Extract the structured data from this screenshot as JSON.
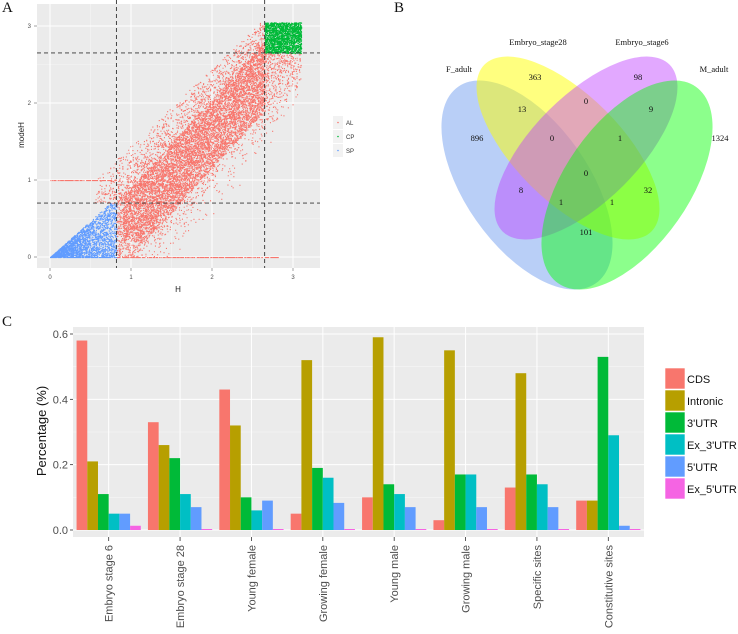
{
  "panels": {
    "a_label": "A",
    "b_label": "B",
    "c_label": "C"
  },
  "chart_data": [
    {
      "panel": "A",
      "type": "scatter",
      "title": "",
      "xlabel": "H",
      "ylabel": "modeH",
      "xlim": [
        -0.15,
        3.3
      ],
      "ylim": [
        -0.15,
        3.2
      ],
      "xticks": [
        "0",
        "1",
        "2",
        "3"
      ],
      "yticks": [
        "0",
        "1",
        "2",
        "3"
      ],
      "grid": true,
      "legend": {
        "placement": "right",
        "entries": [
          {
            "name": "AL",
            "color": "#F8766D"
          },
          {
            "name": "CP",
            "color": "#00BA38"
          },
          {
            "name": "SP",
            "color": "#619CFF"
          }
        ]
      },
      "threshold_lines": {
        "vertical_H": [
          0.82,
          2.65
        ],
        "horizontal_modeH": [
          0.7,
          2.65
        ],
        "style": "dashed"
      },
      "regions": [
        {
          "series": "SP",
          "description": "low H and low modeH",
          "H_range": [
            0,
            0.82
          ],
          "modeH_range": [
            0,
            0.7
          ]
        },
        {
          "series": "CP",
          "description": "high H and high modeH",
          "H_range": [
            2.65,
            3.1
          ],
          "modeH_range": [
            2.65,
            3.05
          ]
        },
        {
          "series": "AL",
          "description": "all other points, diagonal band",
          "H_range": [
            0.55,
            3.1
          ],
          "modeH_range": [
            0,
            3.05
          ]
        }
      ]
    },
    {
      "panel": "B",
      "type": "venn",
      "sets": [
        "F_adult",
        "Embryo_stage28",
        "Embryo_stage6",
        "M_adult"
      ],
      "set_colors": {
        "F_adult": "#6495ED",
        "Embryo_stage28": "#FFFF00",
        "Embryo_stage6": "#BF3EFF",
        "M_adult": "#00FF00"
      },
      "regions": [
        {
          "sets": [
            "F_adult"
          ],
          "value": 896
        },
        {
          "sets": [
            "Embryo_stage28"
          ],
          "value": 363
        },
        {
          "sets": [
            "Embryo_stage6"
          ],
          "value": 98
        },
        {
          "sets": [
            "M_adult"
          ],
          "value": 1324
        },
        {
          "sets": [
            "F_adult",
            "Embryo_stage28"
          ],
          "value": 13
        },
        {
          "sets": [
            "Embryo_stage28",
            "Embryo_stage6"
          ],
          "value": 0
        },
        {
          "sets": [
            "Embryo_stage6",
            "M_adult"
          ],
          "value": 9
        },
        {
          "sets": [
            "F_adult",
            "Embryo_stage28",
            "Embryo_stage6"
          ],
          "value": 0
        },
        {
          "sets": [
            "Embryo_stage28",
            "Embryo_stage6",
            "M_adult"
          ],
          "value": 1
        },
        {
          "sets": [
            "F_adult",
            "Embryo_stage28",
            "Embryo_stage6",
            "M_adult"
          ],
          "value": 0
        },
        {
          "sets": [
            "F_adult",
            "Embryo_stage6"
          ],
          "value": 8
        },
        {
          "sets": [
            "Embryo_stage28",
            "M_adult"
          ],
          "value": 32
        },
        {
          "sets": [
            "F_adult",
            "Embryo_stage6",
            "M_adult"
          ],
          "value": 1
        },
        {
          "sets": [
            "F_adult",
            "Embryo_stage28",
            "M_adult"
          ],
          "value": 1
        },
        {
          "sets": [
            "F_adult",
            "M_adult"
          ],
          "value": 101
        }
      ]
    },
    {
      "panel": "C",
      "type": "bar",
      "title": "",
      "xlabel": "",
      "ylabel": "Percentage (%)",
      "ylim": [
        -0.01,
        0.61
      ],
      "yticks": [
        "0.0",
        "0.2",
        "0.4",
        "0.6"
      ],
      "ytick_values": [
        0,
        0.2,
        0.4,
        0.6
      ],
      "grid": true,
      "legend": "right",
      "categories": [
        "Embryo stage 6",
        "Embryo stage 28",
        "Young female",
        "Growing female",
        "Young male",
        "Growing male",
        "Specific sites",
        "Constitutive sites"
      ],
      "series": [
        {
          "name": "CDS",
          "color": "#F8766D",
          "values": [
            0.58,
            0.33,
            0.43,
            0.05,
            0.1,
            0.03,
            0.13,
            0.09
          ]
        },
        {
          "name": "Intronic",
          "color": "#B79F00",
          "values": [
            0.21,
            0.26,
            0.32,
            0.52,
            0.59,
            0.55,
            0.48,
            0.09
          ]
        },
        {
          "name": "3'UTR",
          "color": "#00BA38",
          "values": [
            0.11,
            0.22,
            0.1,
            0.19,
            0.14,
            0.17,
            0.17,
            0.53
          ]
        },
        {
          "name": "Ex_3'UTR",
          "color": "#00BFC4",
          "values": [
            0.05,
            0.11,
            0.06,
            0.16,
            0.11,
            0.17,
            0.14,
            0.29
          ]
        },
        {
          "name": "5'UTR",
          "color": "#619CFF",
          "values": [
            0.05,
            0.07,
            0.09,
            0.083,
            0.07,
            0.07,
            0.07,
            0.013
          ]
        },
        {
          "name": "Ex_5'UTR",
          "color": "#F564E3",
          "values": [
            0.013,
            0.001,
            0.001,
            0.001,
            0.001,
            0.001,
            0.001,
            0.001
          ]
        }
      ]
    }
  ]
}
